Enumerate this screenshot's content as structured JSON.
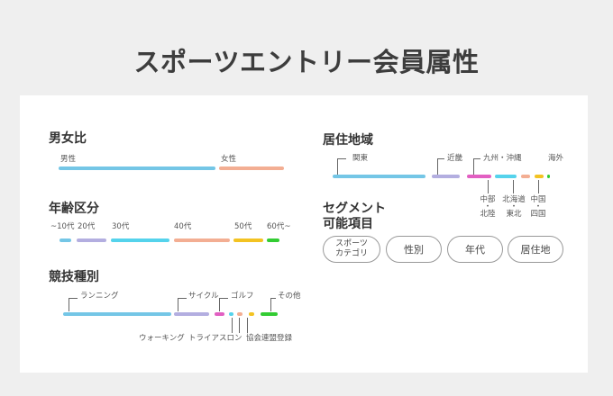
{
  "title": "スポーツエントリー会員属性",
  "colors": {
    "blue": "#74c6e6",
    "orange": "#f3ae93",
    "lavender": "#b3aee0",
    "cyan": "#55d3ec",
    "yellow": "#f3c322",
    "green": "#33cc33",
    "pink": "#e25fc2",
    "gray": "#c2c2c2"
  },
  "gender": {
    "heading": "男女比",
    "male": "男性",
    "female": "女性"
  },
  "age": {
    "heading": "年齢区分",
    "labels": [
      "~10代",
      "20代",
      "30代",
      "40代",
      "50代",
      "60代~"
    ]
  },
  "sport": {
    "heading": "競技種別",
    "running": "ランニング",
    "cycle": "サイクル",
    "golf": "ゴルフ",
    "other": "その他",
    "walking": "ウォーキング",
    "triathlon": "トライアスロン",
    "assoc": "協会連盟登録"
  },
  "region": {
    "heading": "居住地域",
    "kanto": "関東",
    "kinki": "近畿",
    "kyushu": "九州・沖縄",
    "overseas": "海外",
    "chubu": [
      "中部",
      "・",
      "北陸"
    ],
    "hokkaido": [
      "北海道",
      "・",
      "東北"
    ],
    "chugoku": [
      "中国",
      "・",
      "四国"
    ]
  },
  "segment": {
    "heading": [
      "セグメント",
      "可能項目"
    ],
    "tags": [
      [
        "スポーツ",
        "カテゴリ"
      ],
      [
        "性別"
      ],
      [
        "年代"
      ],
      [
        "居住地"
      ]
    ]
  }
}
